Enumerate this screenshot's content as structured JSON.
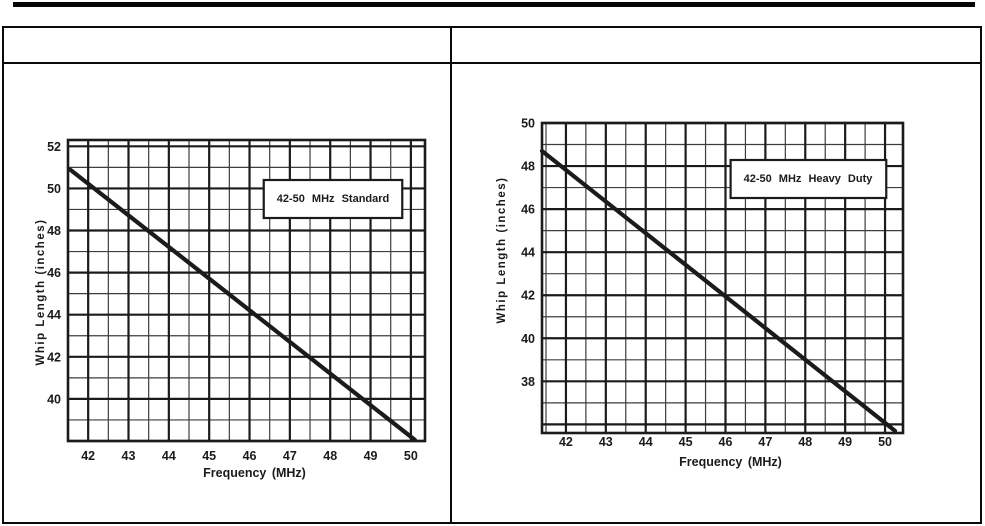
{
  "page": {
    "background": "#ffffff",
    "ink_color": "#1b1b1b",
    "scan_speck": "..."
  },
  "table": {
    "header": {
      "left": "",
      "right": ""
    }
  },
  "chart_data": [
    {
      "name": "standard",
      "type": "line",
      "title": "42-50 MHz Standard",
      "xlabel": "Frequency (MHz)",
      "ylabel": "Whip Length (inches)",
      "xlim": [
        41.5,
        50.35
      ],
      "ylim": [
        38,
        52.3
      ],
      "xticks": [
        42,
        43,
        44,
        45,
        46,
        47,
        48,
        49,
        50
      ],
      "yticks": [
        40,
        42,
        44,
        46,
        48,
        50,
        52
      ],
      "x_major_step": 1,
      "x_minor_step": 0.5,
      "y_major_step": 2,
      "y_minor_step": 1,
      "grid": true,
      "legend": "none",
      "series": [
        {
          "name": "whip-length",
          "x": [
            41.55,
            50.1
          ],
          "y": [
            50.9,
            38.05
          ]
        }
      ]
    },
    {
      "name": "heavy-duty",
      "type": "line",
      "title": "42-50 MHz Heavy Duty",
      "xlabel": "Frequency (MHz)",
      "ylabel": "Whip Length (inches)",
      "xlim": [
        41.4,
        50.45
      ],
      "ylim": [
        35.6,
        50
      ],
      "xticks": [
        42,
        43,
        44,
        45,
        46,
        47,
        48,
        49,
        50
      ],
      "yticks": [
        38,
        40,
        42,
        44,
        46,
        48,
        50
      ],
      "x_major_step": 1,
      "x_minor_step": 0.5,
      "y_major_step": 2,
      "y_minor_step": 1,
      "grid": true,
      "legend": "none",
      "series": [
        {
          "name": "whip-length",
          "x": [
            41.4,
            50.25
          ],
          "y": [
            48.7,
            35.7
          ]
        }
      ]
    }
  ]
}
